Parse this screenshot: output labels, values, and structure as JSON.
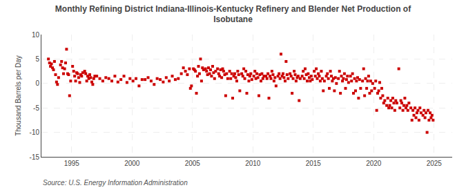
{
  "chart_data": {
    "type": "scatter",
    "title": "Monthly Refining District Indiana-Illinois-Kentucky Refinery and Blender Net Production of\nIsobutane",
    "ylabel": "Thousand Barrels per Day",
    "annotations": [
      "Source: U.S. Energy Information Administration"
    ],
    "color": "#cc0000",
    "marker": "square",
    "grid": true,
    "xlim": [
      1992.5,
      2026.5
    ],
    "ylim": [
      -15,
      10
    ],
    "xticks": [
      1995,
      2000,
      2005,
      2010,
      2015,
      2020,
      2025
    ],
    "yticks": [
      -15,
      -10,
      -5,
      0,
      5,
      10
    ],
    "x": [
      1993.08,
      1993.17,
      1993.25,
      1993.33,
      1993.42,
      1993.5,
      1993.58,
      1993.67,
      1993.75,
      1993.83,
      1993.92,
      1994.08,
      1994.17,
      1994.25,
      1994.33,
      1994.42,
      1994.5,
      1994.58,
      1994.67,
      1994.75,
      1994.83,
      1994.92,
      1995.08,
      1995.17,
      1995.25,
      1995.33,
      1995.42,
      1995.5,
      1995.58,
      1995.67,
      1995.75,
      1995.83,
      1995.92,
      1996.08,
      1996.17,
      1996.25,
      1996.33,
      1996.42,
      1996.5,
      1996.58,
      1996.67,
      1996.75,
      1996.83,
      1996.92,
      1997.08,
      1997.33,
      1997.58,
      1997.83,
      1998.08,
      1998.33,
      1998.58,
      1998.83,
      1999.08,
      1999.33,
      1999.58,
      1999.83,
      2000.08,
      2000.33,
      2000.58,
      2000.83,
      2001.08,
      2001.33,
      2001.58,
      2001.83,
      2002.08,
      2002.33,
      2002.58,
      2002.83,
      2003.08,
      2003.33,
      2003.58,
      2003.83,
      2004.08,
      2004.25,
      2004.42,
      2004.58,
      2004.75,
      2004.83,
      2004.92,
      2005.08,
      2005.17,
      2005.25,
      2005.33,
      2005.42,
      2005.5,
      2005.58,
      2005.67,
      2005.75,
      2005.83,
      2005.92,
      2006.08,
      2006.17,
      2006.25,
      2006.33,
      2006.42,
      2006.5,
      2006.58,
      2006.67,
      2006.75,
      2006.83,
      2006.92,
      2007.08,
      2007.17,
      2007.25,
      2007.33,
      2007.42,
      2007.5,
      2007.58,
      2007.67,
      2007.75,
      2007.83,
      2007.92,
      2008.08,
      2008.17,
      2008.25,
      2008.33,
      2008.42,
      2008.5,
      2008.58,
      2008.67,
      2008.75,
      2008.83,
      2008.92,
      2009.08,
      2009.17,
      2009.25,
      2009.33,
      2009.42,
      2009.5,
      2009.58,
      2009.67,
      2009.75,
      2009.83,
      2009.92,
      2010.08,
      2010.17,
      2010.25,
      2010.33,
      2010.42,
      2010.5,
      2010.58,
      2010.67,
      2010.75,
      2010.83,
      2010.92,
      2011.08,
      2011.17,
      2011.25,
      2011.33,
      2011.42,
      2011.5,
      2011.58,
      2011.67,
      2011.75,
      2011.83,
      2011.92,
      2012.08,
      2012.17,
      2012.25,
      2012.33,
      2012.42,
      2012.5,
      2012.58,
      2012.67,
      2012.75,
      2012.83,
      2012.92,
      2013.08,
      2013.17,
      2013.25,
      2013.33,
      2013.42,
      2013.5,
      2013.58,
      2013.67,
      2013.75,
      2013.83,
      2013.92,
      2014.08,
      2014.17,
      2014.25,
      2014.33,
      2014.42,
      2014.5,
      2014.58,
      2014.67,
      2014.75,
      2014.83,
      2014.92,
      2015.08,
      2015.17,
      2015.25,
      2015.33,
      2015.42,
      2015.5,
      2015.58,
      2015.67,
      2015.75,
      2015.83,
      2015.92,
      2016.08,
      2016.17,
      2016.25,
      2016.33,
      2016.42,
      2016.5,
      2016.58,
      2016.67,
      2016.75,
      2016.83,
      2016.92,
      2017.08,
      2017.17,
      2017.25,
      2017.33,
      2017.42,
      2017.5,
      2017.58,
      2017.67,
      2017.75,
      2017.83,
      2017.92,
      2018.08,
      2018.17,
      2018.25,
      2018.33,
      2018.42,
      2018.5,
      2018.58,
      2018.67,
      2018.75,
      2018.83,
      2018.92,
      2019.08,
      2019.17,
      2019.25,
      2019.33,
      2019.42,
      2019.5,
      2019.58,
      2019.67,
      2019.75,
      2019.83,
      2019.92,
      2020.08,
      2020.17,
      2020.25,
      2020.33,
      2020.42,
      2020.5,
      2020.58,
      2020.67,
      2020.75,
      2020.83,
      2020.92,
      2021.08,
      2021.17,
      2021.25,
      2021.33,
      2021.42,
      2021.5,
      2021.58,
      2021.67,
      2021.75,
      2021.83,
      2021.92,
      2022.08,
      2022.17,
      2022.25,
      2022.33,
      2022.42,
      2022.5,
      2022.58,
      2022.67,
      2022.75,
      2022.83,
      2022.92,
      2023.08,
      2023.17,
      2023.25,
      2023.33,
      2023.42,
      2023.5,
      2023.58,
      2023.67,
      2023.75,
      2023.83,
      2023.92,
      2024.08,
      2024.17,
      2024.25,
      2024.33,
      2024.42,
      2024.5,
      2024.58,
      2024.67,
      2024.75,
      2024.83,
      2024.92
    ],
    "values": [
      5.0,
      4.2,
      3.5,
      4.0,
      3.2,
      2.8,
      4.5,
      1.8,
      0.3,
      -0.2,
      1.2,
      3.8,
      4.5,
      3.2,
      2.0,
      3.0,
      4.2,
      7.0,
      2.0,
      1.8,
      -2.5,
      0.5,
      3.5,
      2.5,
      1.5,
      0.5,
      2.2,
      2.0,
      1.2,
      0.2,
      1.8,
      1.5,
      2.2,
      2.5,
      2.0,
      0.5,
      1.5,
      1.0,
      1.8,
      1.2,
      0.3,
      -0.2,
      1.0,
      1.5,
      1.5,
      1.0,
      0.5,
      1.2,
      1.0,
      0.5,
      1.5,
      0.3,
      0.8,
      1.5,
      0.2,
      1.0,
      0.5,
      1.0,
      -0.5,
      0.8,
      0.8,
      1.2,
      0.5,
      -0.2,
      1.0,
      0.8,
      0.3,
      1.2,
      0.5,
      1.5,
      0.8,
      1.0,
      2.0,
      3.2,
      2.5,
      1.8,
      3.0,
      -1.0,
      -0.5,
      3.0,
      2.8,
      2.5,
      -2.0,
      1.5,
      3.5,
      2.0,
      5.0,
      0.5,
      3.2,
      2.8,
      3.0,
      2.5,
      1.8,
      3.2,
      2.0,
      2.8,
      1.5,
      3.5,
      2.2,
      1.0,
      2.5,
      3.0,
      2.0,
      1.5,
      2.8,
      1.2,
      3.0,
      2.5,
      1.8,
      -2.5,
      2.0,
      1.0,
      2.5,
      1.0,
      2.0,
      -3.0,
      1.5,
      2.0,
      1.2,
      0.5,
      2.5,
      1.8,
      -1.5,
      2.0,
      1.5,
      3.0,
      1.0,
      2.5,
      -2.0,
      1.8,
      0.5,
      1.5,
      2.0,
      0.8,
      1.5,
      2.5,
      1.0,
      2.0,
      1.2,
      -2.5,
      1.8,
      0.5,
      2.0,
      1.0,
      1.5,
      1.5,
      1.0,
      2.0,
      -3.0,
      1.5,
      1.0,
      2.5,
      1.8,
      0.5,
      1.2,
      -0.5,
      1.5,
      2.0,
      1.0,
      6.0,
      1.5,
      2.0,
      1.2,
      0.5,
      4.5,
      1.8,
      1.0,
      2.0,
      1.5,
      -2.0,
      1.0,
      2.5,
      1.8,
      0.5,
      1.2,
      1.5,
      -3.5,
      1.0,
      1.5,
      2.5,
      1.0,
      3.0,
      1.8,
      0.5,
      2.0,
      1.2,
      0.5,
      1.5,
      0.8,
      2.5,
      1.5,
      3.0,
      1.0,
      2.0,
      1.5,
      0.5,
      2.5,
      1.0,
      -1.5,
      0.5,
      1.5,
      2.0,
      1.0,
      -1.0,
      2.5,
      1.5,
      0.5,
      1.0,
      -1.5,
      1.2,
      0.0,
      1.0,
      2.5,
      -2.0,
      1.5,
      0.5,
      1.0,
      2.0,
      -1.0,
      0.8,
      1.5,
      0.2,
      1.5,
      0.5,
      2.0,
      -2.0,
      1.0,
      -1.5,
      0.5,
      1.2,
      -3.0,
      0.8,
      -1.0,
      0.5,
      3.0,
      -2.5,
      1.0,
      -1.0,
      0.5,
      1.5,
      -2.0,
      0.5,
      -1.5,
      0.0,
      -1.0,
      0.5,
      -5.5,
      -2.0,
      -1.5,
      0.2,
      -3.0,
      -1.0,
      -2.5,
      -4.0,
      -3.5,
      -4.5,
      -3.0,
      -5.0,
      -4.5,
      -3.5,
      -5.0,
      -3.0,
      -4.0,
      -5.5,
      -3.5,
      -4.0,
      3.0,
      -5.0,
      -3.5,
      -4.0,
      -5.5,
      -4.5,
      -3.0,
      -5.0,
      -4.5,
      -5.5,
      -4.0,
      -5.0,
      -7.5,
      -5.5,
      -6.5,
      -5.0,
      -7.0,
      -6.0,
      -5.5,
      -7.5,
      -5.0,
      -6.0,
      -6.5,
      -5.5,
      -7.0,
      -6.0,
      -10.0,
      -5.5,
      -7.5,
      -6.0,
      -7.0,
      -6.5,
      -7.5
    ]
  }
}
